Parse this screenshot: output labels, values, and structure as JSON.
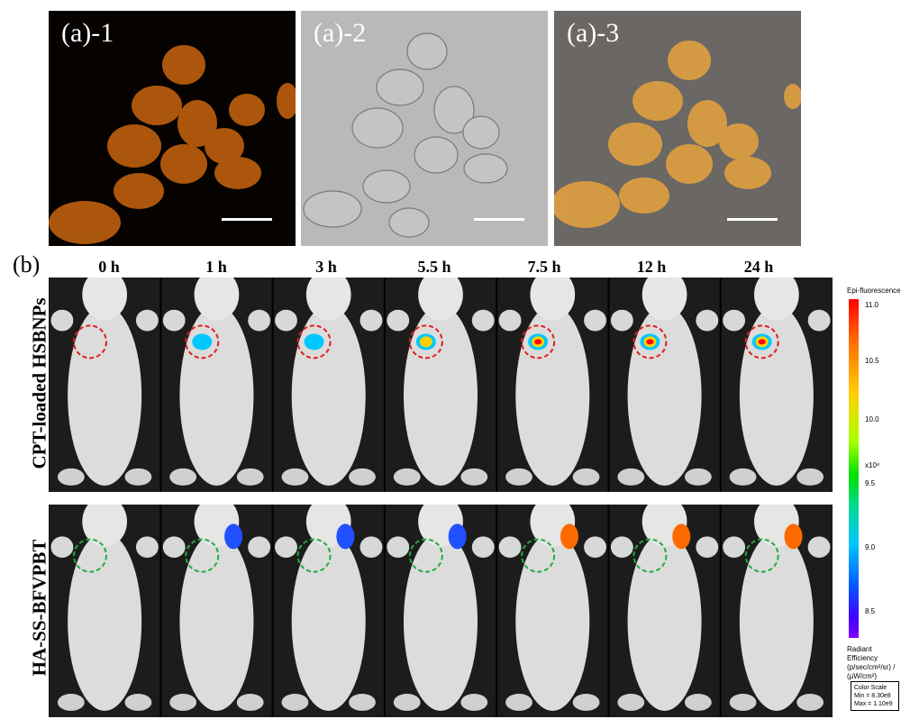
{
  "panel_a": {
    "images": [
      {
        "label": "(a)-1"
      },
      {
        "label": "(a)-2"
      },
      {
        "label": "(a)-3"
      }
    ]
  },
  "panel_b": {
    "label": "(b)",
    "time_points": [
      "0 h",
      "1 h",
      "3 h",
      "5.5 h",
      "7.5 h",
      "12 h",
      "24 h"
    ],
    "rows": [
      {
        "label": "CPT-loaded HSBNPs",
        "circle_color": "#e02020"
      },
      {
        "label": "HA-SS-BFVPBT",
        "circle_color": "#22aa44"
      }
    ]
  },
  "color_scale": {
    "title": "Epi-fluorescence",
    "ticks": [
      "11.0",
      "10.5",
      "10.0",
      "9.5",
      "9.0",
      "8.5"
    ],
    "multiplier": "x10⁸",
    "unit_title": "Radiant Efficiency",
    "unit": "(p/sec/cm²/sr) / (µW/cm²)",
    "box_title": "Color Scale",
    "min": "Min = 8.30e8",
    "max": "Max = 1.10e9"
  }
}
